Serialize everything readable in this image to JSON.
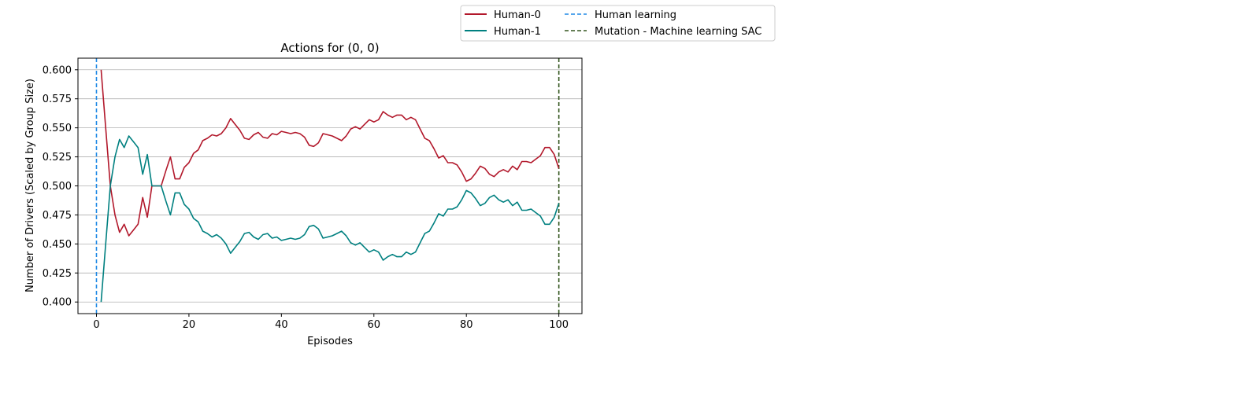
{
  "chart_data": {
    "type": "line",
    "title": "Actions for (0, 0)",
    "xlabel": "Episodes",
    "ylabel": "Number of Drivers (Scaled by Group Size)",
    "xlim": [
      -4,
      105
    ],
    "ylim": [
      0.39,
      0.61
    ],
    "xticks": [
      0,
      20,
      40,
      60,
      80,
      100
    ],
    "xtick_labels": [
      "0",
      "20",
      "40",
      "60",
      "80",
      "100"
    ],
    "yticks": [
      0.4,
      0.425,
      0.45,
      0.475,
      0.5,
      0.525,
      0.55,
      0.575,
      0.6
    ],
    "ytick_labels": [
      "0.400",
      "0.425",
      "0.450",
      "0.475",
      "0.500",
      "0.525",
      "0.550",
      "0.575",
      "0.600"
    ],
    "grid": "horizontal",
    "legend_placement": "top, outside plot",
    "series": [
      {
        "name": "Human-0",
        "color": "#b2182b",
        "x": [
          1,
          2,
          3,
          4,
          5,
          6,
          7,
          8,
          9,
          10,
          11,
          12,
          13,
          14,
          15,
          16,
          17,
          18,
          19,
          20,
          21,
          22,
          23,
          24,
          25,
          26,
          27,
          28,
          29,
          30,
          31,
          32,
          33,
          34,
          35,
          36,
          37,
          38,
          39,
          40,
          41,
          42,
          43,
          44,
          45,
          46,
          47,
          48,
          49,
          50,
          51,
          52,
          53,
          54,
          55,
          56,
          57,
          58,
          59,
          60,
          61,
          62,
          63,
          64,
          65,
          66,
          67,
          68,
          69,
          70,
          71,
          72,
          73,
          74,
          75,
          76,
          77,
          78,
          79,
          80,
          81,
          82,
          83,
          84,
          85,
          86,
          87,
          88,
          89,
          90,
          91,
          92,
          93,
          94,
          95,
          96,
          97,
          98,
          99,
          100
        ],
        "y": [
          0.6,
          0.55,
          0.5,
          0.475,
          0.46,
          0.467,
          0.457,
          0.462,
          0.467,
          0.49,
          0.473,
          0.5,
          0.5,
          0.5,
          0.513,
          0.525,
          0.506,
          0.506,
          0.516,
          0.52,
          0.528,
          0.531,
          0.539,
          0.541,
          0.544,
          0.543,
          0.545,
          0.55,
          0.558,
          0.553,
          0.548,
          0.541,
          0.54,
          0.544,
          0.546,
          0.542,
          0.541,
          0.545,
          0.544,
          0.547,
          0.546,
          0.545,
          0.546,
          0.545,
          0.542,
          0.535,
          0.534,
          0.537,
          0.545,
          0.544,
          0.543,
          0.541,
          0.539,
          0.543,
          0.549,
          0.551,
          0.549,
          0.553,
          0.557,
          0.555,
          0.557,
          0.564,
          0.561,
          0.559,
          0.561,
          0.561,
          0.557,
          0.559,
          0.557,
          0.549,
          0.541,
          0.539,
          0.532,
          0.524,
          0.526,
          0.52,
          0.52,
          0.518,
          0.512,
          0.504,
          0.506,
          0.511,
          0.517,
          0.515,
          0.51,
          0.508,
          0.512,
          0.514,
          0.512,
          0.517,
          0.514,
          0.521,
          0.521,
          0.52,
          0.523,
          0.526,
          0.533,
          0.533,
          0.527,
          0.515
        ]
      },
      {
        "name": "Human-1",
        "color": "#008080",
        "x": [
          1,
          2,
          3,
          4,
          5,
          6,
          7,
          8,
          9,
          10,
          11,
          12,
          13,
          14,
          15,
          16,
          17,
          18,
          19,
          20,
          21,
          22,
          23,
          24,
          25,
          26,
          27,
          28,
          29,
          30,
          31,
          32,
          33,
          34,
          35,
          36,
          37,
          38,
          39,
          40,
          41,
          42,
          43,
          44,
          45,
          46,
          47,
          48,
          49,
          50,
          51,
          52,
          53,
          54,
          55,
          56,
          57,
          58,
          59,
          60,
          61,
          62,
          63,
          64,
          65,
          66,
          67,
          68,
          69,
          70,
          71,
          72,
          73,
          74,
          75,
          76,
          77,
          78,
          79,
          80,
          81,
          82,
          83,
          84,
          85,
          86,
          87,
          88,
          89,
          90,
          91,
          92,
          93,
          94,
          95,
          96,
          97,
          98,
          99,
          100
        ],
        "y": [
          0.4,
          0.45,
          0.5,
          0.525,
          0.54,
          0.533,
          0.543,
          0.538,
          0.533,
          0.51,
          0.527,
          0.5,
          0.5,
          0.5,
          0.487,
          0.475,
          0.494,
          0.494,
          0.484,
          0.48,
          0.472,
          0.469,
          0.461,
          0.459,
          0.456,
          0.458,
          0.455,
          0.45,
          0.442,
          0.447,
          0.452,
          0.459,
          0.46,
          0.456,
          0.454,
          0.458,
          0.459,
          0.455,
          0.456,
          0.453,
          0.454,
          0.455,
          0.454,
          0.455,
          0.458,
          0.465,
          0.466,
          0.463,
          0.455,
          0.456,
          0.457,
          0.459,
          0.461,
          0.457,
          0.451,
          0.449,
          0.451,
          0.447,
          0.443,
          0.445,
          0.443,
          0.436,
          0.439,
          0.441,
          0.439,
          0.439,
          0.443,
          0.441,
          0.443,
          0.451,
          0.459,
          0.461,
          0.468,
          0.476,
          0.474,
          0.48,
          0.48,
          0.482,
          0.488,
          0.496,
          0.494,
          0.489,
          0.483,
          0.485,
          0.49,
          0.492,
          0.488,
          0.486,
          0.488,
          0.483,
          0.486,
          0.479,
          0.479,
          0.48,
          0.477,
          0.474,
          0.467,
          0.467,
          0.473,
          0.485
        ]
      }
    ],
    "vlines": [
      {
        "name": "Human learning",
        "x": 0,
        "color": "#1e88e5",
        "style": "dashed"
      },
      {
        "name": "Mutation - Machine learning SAC",
        "x": 100,
        "color": "#33551e",
        "style": "dashed"
      }
    ]
  }
}
